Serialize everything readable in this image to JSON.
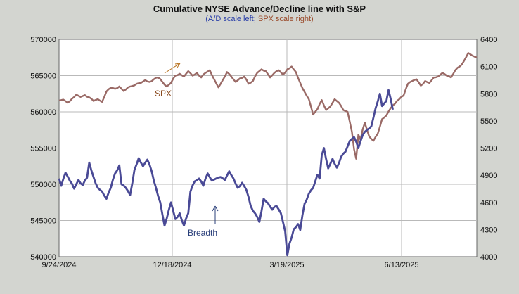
{
  "colors": {
    "background": "#d3d5d0",
    "plot_bg": "#ffffff",
    "grid": "#b9b9b9",
    "ad_line": "#4a4a96",
    "spx_line": "#9a6a66",
    "annotation_arrow_spx": "#b8721e",
    "annotation_arrow_ad": "#2a3f7a"
  },
  "chart_data": {
    "type": "line",
    "title": "Cumulative NYSE Advance/Decline line with S&P",
    "subtitle": {
      "left": "(A/D scale left",
      "sep": ";",
      "right": "SPX scale right)"
    },
    "x_ticks": [
      "9/24/2024",
      "12/18/2024",
      "3/19/2025",
      "6/13/2025"
    ],
    "n_points": 195,
    "y_left": {
      "min": 540000,
      "max": 570000,
      "ticks": [
        "540000",
        "545000",
        "550000",
        "555000",
        "560000",
        "565000",
        "570000"
      ]
    },
    "y_right": {
      "min": 4000,
      "max": 6400,
      "ticks": [
        "4000",
        "4300",
        "4600",
        "4900",
        "5200",
        "5500",
        "5800",
        "6100",
        "6400"
      ]
    },
    "annotations": {
      "spx_label": "SPX",
      "ad_label": "Breadth"
    },
    "series": [
      {
        "name": "SPX",
        "axis": "right",
        "anchors": [
          [
            0,
            5725
          ],
          [
            2,
            5735
          ],
          [
            4,
            5700
          ],
          [
            6,
            5745
          ],
          [
            8,
            5790
          ],
          [
            10,
            5765
          ],
          [
            12,
            5785
          ],
          [
            14,
            5760
          ],
          [
            16,
            5720
          ],
          [
            18,
            5740
          ],
          [
            20,
            5710
          ],
          [
            22,
            5825
          ],
          [
            24,
            5865
          ],
          [
            26,
            5855
          ],
          [
            28,
            5880
          ],
          [
            30,
            5830
          ],
          [
            32,
            5870
          ],
          [
            34,
            5885
          ],
          [
            36,
            5910
          ],
          [
            38,
            5920
          ],
          [
            40,
            5950
          ],
          [
            42,
            5930
          ],
          [
            44,
            5960
          ],
          [
            46,
            5980
          ],
          [
            48,
            5930
          ],
          [
            50,
            5880
          ],
          [
            52,
            5920
          ],
          [
            54,
            6000
          ],
          [
            56,
            6020
          ],
          [
            58,
            5990
          ],
          [
            60,
            6050
          ],
          [
            62,
            6000
          ],
          [
            64,
            6030
          ],
          [
            66,
            5980
          ],
          [
            68,
            6030
          ],
          [
            70,
            6060
          ],
          [
            72,
            5960
          ],
          [
            74,
            5870
          ],
          [
            76,
            5950
          ],
          [
            78,
            6040
          ],
          [
            80,
            5990
          ],
          [
            82,
            5930
          ],
          [
            84,
            5970
          ],
          [
            86,
            5990
          ],
          [
            88,
            5910
          ],
          [
            90,
            5940
          ],
          [
            92,
            6030
          ],
          [
            94,
            6070
          ],
          [
            96,
            6050
          ],
          [
            98,
            5980
          ],
          [
            100,
            6030
          ],
          [
            102,
            6060
          ],
          [
            104,
            6010
          ],
          [
            106,
            6070
          ],
          [
            108,
            6100
          ],
          [
            110,
            6040
          ],
          [
            112,
            5920
          ],
          [
            114,
            5820
          ],
          [
            116,
            5740
          ],
          [
            118,
            5570
          ],
          [
            120,
            5630
          ],
          [
            122,
            5730
          ],
          [
            124,
            5620
          ],
          [
            126,
            5660
          ],
          [
            128,
            5740
          ],
          [
            130,
            5700
          ],
          [
            132,
            5620
          ],
          [
            134,
            5600
          ],
          [
            136,
            5380
          ],
          [
            137,
            5185
          ],
          [
            138,
            5082
          ],
          [
            139,
            5350
          ],
          [
            140,
            5290
          ],
          [
            141,
            5405
          ],
          [
            142,
            5480
          ],
          [
            144,
            5330
          ],
          [
            146,
            5280
          ],
          [
            148,
            5360
          ],
          [
            150,
            5520
          ],
          [
            152,
            5560
          ],
          [
            154,
            5640
          ],
          [
            156,
            5690
          ],
          [
            158,
            5740
          ],
          [
            160,
            5780
          ],
          [
            162,
            5910
          ],
          [
            164,
            5940
          ],
          [
            166,
            5960
          ],
          [
            168,
            5890
          ],
          [
            170,
            5940
          ],
          [
            172,
            5920
          ],
          [
            174,
            5980
          ],
          [
            176,
            5990
          ],
          [
            178,
            6030
          ],
          [
            180,
            6000
          ],
          [
            182,
            5980
          ],
          [
            184,
            6060
          ],
          [
            186,
            6100
          ],
          [
            188,
            6160
          ],
          [
            190,
            6250
          ],
          [
            192,
            6220
          ],
          [
            194,
            6200
          ]
        ]
      },
      {
        "name": "Breadth",
        "axis": "left",
        "anchors": [
          [
            0,
            550800
          ],
          [
            1,
            549800
          ],
          [
            3,
            551600
          ],
          [
            5,
            550500
          ],
          [
            7,
            549400
          ],
          [
            9,
            550600
          ],
          [
            11,
            549900
          ],
          [
            13,
            550900
          ],
          [
            14,
            553000
          ],
          [
            16,
            551000
          ],
          [
            18,
            549500
          ],
          [
            20,
            549000
          ],
          [
            22,
            548000
          ],
          [
            24,
            549500
          ],
          [
            26,
            551500
          ],
          [
            28,
            552600
          ],
          [
            29,
            550000
          ],
          [
            31,
            549500
          ],
          [
            33,
            548500
          ],
          [
            35,
            552000
          ],
          [
            37,
            553600
          ],
          [
            39,
            552500
          ],
          [
            41,
            553400
          ],
          [
            43,
            551800
          ],
          [
            45,
            549500
          ],
          [
            47,
            547500
          ],
          [
            48,
            545800
          ],
          [
            49,
            544300
          ],
          [
            51,
            546500
          ],
          [
            52,
            547500
          ],
          [
            54,
            545200
          ],
          [
            56,
            546000
          ],
          [
            58,
            544300
          ],
          [
            60,
            546000
          ],
          [
            61,
            549000
          ],
          [
            63,
            550400
          ],
          [
            65,
            550800
          ],
          [
            67,
            549800
          ],
          [
            69,
            551500
          ],
          [
            71,
            550500
          ],
          [
            73,
            550800
          ],
          [
            75,
            551000
          ],
          [
            77,
            550600
          ],
          [
            79,
            551800
          ],
          [
            81,
            550800
          ],
          [
            83,
            549500
          ],
          [
            85,
            550200
          ],
          [
            87,
            549200
          ],
          [
            89,
            547000
          ],
          [
            91,
            546000
          ],
          [
            93,
            544800
          ],
          [
            95,
            548000
          ],
          [
            97,
            547400
          ],
          [
            99,
            546500
          ],
          [
            101,
            547000
          ],
          [
            103,
            546000
          ],
          [
            105,
            543500
          ],
          [
            106,
            540200
          ],
          [
            107,
            541800
          ],
          [
            109,
            543800
          ],
          [
            111,
            544500
          ],
          [
            112,
            543700
          ],
          [
            113,
            545700
          ],
          [
            114,
            547300
          ],
          [
            116,
            548700
          ],
          [
            118,
            549500
          ],
          [
            120,
            551300
          ],
          [
            121,
            550800
          ],
          [
            122,
            554000
          ],
          [
            123,
            555000
          ],
          [
            125,
            552200
          ],
          [
            127,
            553500
          ],
          [
            129,
            552300
          ],
          [
            131,
            553800
          ],
          [
            133,
            554500
          ],
          [
            135,
            556000
          ],
          [
            137,
            556500
          ],
          [
            139,
            555000
          ],
          [
            141,
            556800
          ],
          [
            143,
            557500
          ],
          [
            145,
            558000
          ],
          [
            147,
            560500
          ],
          [
            149,
            562500
          ],
          [
            150,
            560800
          ],
          [
            152,
            561500
          ],
          [
            153,
            563000
          ],
          [
            154,
            561800
          ],
          [
            155,
            560300
          ]
        ]
      }
    ]
  }
}
